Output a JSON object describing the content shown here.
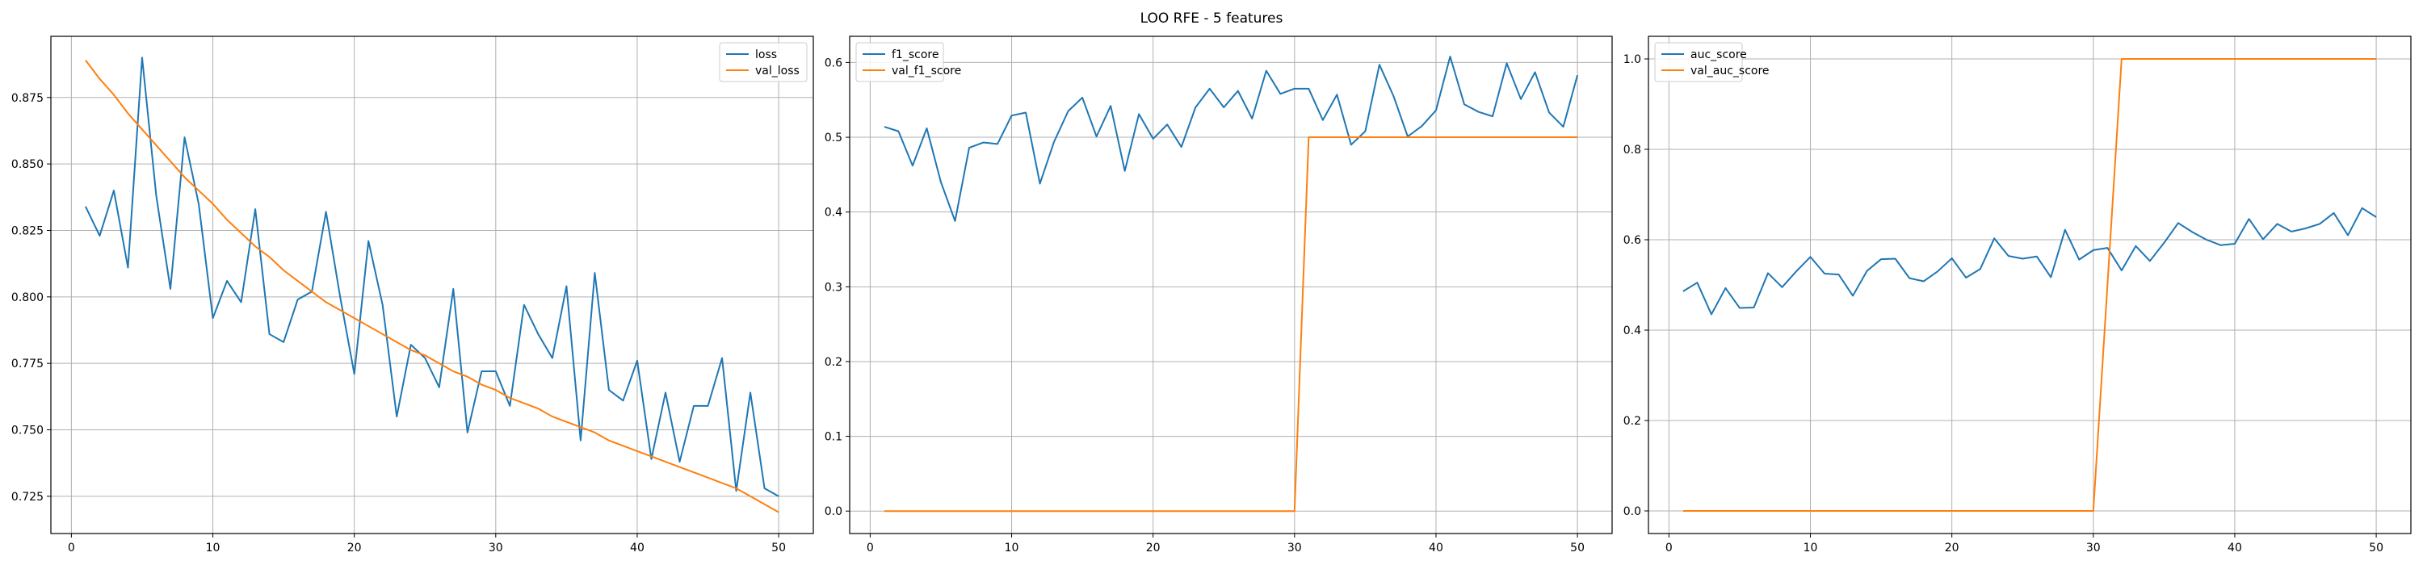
{
  "figure": {
    "title": "LOO RFE - 5 features"
  },
  "colors": {
    "series_1": "#1f77b4",
    "series_2": "#ff7f0e",
    "grid": "#b0b0b0",
    "axes": "#000000"
  },
  "chart_data": [
    {
      "type": "line",
      "title": "",
      "xlabel": "",
      "ylabel": "",
      "xlim": [
        -1.45,
        52.45
      ],
      "ylim": [
        0.711,
        0.898
      ],
      "xticks": [
        0,
        10,
        20,
        30,
        40,
        50
      ],
      "xtick_labels": [
        "0",
        "10",
        "20",
        "30",
        "40",
        "50"
      ],
      "yticks": [
        0.725,
        0.75,
        0.775,
        0.8,
        0.825,
        0.85,
        0.875
      ],
      "ytick_labels": [
        "0.725",
        "0.750",
        "0.775",
        "0.800",
        "0.825",
        "0.850",
        "0.875"
      ],
      "grid": true,
      "legend": "top-right",
      "x": [
        1,
        2,
        3,
        4,
        5,
        6,
        7,
        8,
        9,
        10,
        11,
        12,
        13,
        14,
        15,
        16,
        17,
        18,
        19,
        20,
        21,
        22,
        23,
        24,
        25,
        26,
        27,
        28,
        29,
        30,
        31,
        32,
        33,
        34,
        35,
        36,
        37,
        38,
        39,
        40,
        41,
        42,
        43,
        44,
        45,
        46,
        47,
        48,
        49,
        50
      ],
      "series": [
        {
          "name": "loss",
          "color": "#1f77b4",
          "values": [
            0.834,
            0.823,
            0.84,
            0.811,
            0.89,
            0.838,
            0.803,
            0.86,
            0.835,
            0.792,
            0.806,
            0.798,
            0.833,
            0.786,
            0.783,
            0.799,
            0.802,
            0.832,
            0.8,
            0.771,
            0.821,
            0.797,
            0.755,
            0.782,
            0.777,
            0.766,
            0.803,
            0.749,
            0.772,
            0.772,
            0.759,
            0.797,
            0.786,
            0.777,
            0.804,
            0.746,
            0.809,
            0.765,
            0.761,
            0.776,
            0.739,
            0.764,
            0.738,
            0.759,
            0.759,
            0.777,
            0.727,
            0.764,
            0.728,
            0.725
          ]
        },
        {
          "name": "val_loss",
          "color": "#ff7f0e",
          "values": [
            0.889,
            0.882,
            0.876,
            0.869,
            0.863,
            0.857,
            0.851,
            0.845,
            0.84,
            0.835,
            0.829,
            0.824,
            0.819,
            0.815,
            0.81,
            0.806,
            0.802,
            0.798,
            0.795,
            0.792,
            0.789,
            0.786,
            0.783,
            0.78,
            0.778,
            0.775,
            0.772,
            0.77,
            0.767,
            0.765,
            0.762,
            0.76,
            0.758,
            0.755,
            0.753,
            0.751,
            0.749,
            0.746,
            0.744,
            0.742,
            0.74,
            0.738,
            0.736,
            0.734,
            0.732,
            0.73,
            0.728,
            0.725,
            0.722,
            0.719
          ]
        }
      ]
    },
    {
      "type": "line",
      "title": "",
      "xlabel": "",
      "ylabel": "",
      "xlim": [
        -1.45,
        52.45
      ],
      "ylim": [
        -0.03,
        0.635
      ],
      "xticks": [
        0,
        10,
        20,
        30,
        40,
        50
      ],
      "xtick_labels": [
        "0",
        "10",
        "20",
        "30",
        "40",
        "50"
      ],
      "yticks": [
        0,
        0.1,
        0.2,
        0.3,
        0.4,
        0.5,
        0.6
      ],
      "ytick_labels": [
        "0.0",
        "0.1",
        "0.2",
        "0.3",
        "0.4",
        "0.5",
        "0.6"
      ],
      "grid": true,
      "legend": "top-left",
      "x": [
        1,
        2,
        3,
        4,
        5,
        6,
        7,
        8,
        9,
        10,
        11,
        12,
        13,
        14,
        15,
        16,
        17,
        18,
        19,
        20,
        21,
        22,
        23,
        24,
        25,
        26,
        27,
        28,
        29,
        30,
        31,
        32,
        33,
        34,
        35,
        36,
        37,
        38,
        39,
        40,
        41,
        42,
        43,
        44,
        45,
        46,
        47,
        48,
        49,
        50
      ],
      "series": [
        {
          "name": "f1_score",
          "color": "#1f77b4",
          "values": [
            0.514,
            0.508,
            0.462,
            0.512,
            0.44,
            0.388,
            0.486,
            0.493,
            0.491,
            0.529,
            0.533,
            0.438,
            0.494,
            0.535,
            0.553,
            0.501,
            0.542,
            0.455,
            0.531,
            0.498,
            0.517,
            0.487,
            0.54,
            0.565,
            0.54,
            0.562,
            0.525,
            0.589,
            0.558,
            0.565,
            0.565,
            0.523,
            0.557,
            0.49,
            0.508,
            0.597,
            0.555,
            0.501,
            0.515,
            0.536,
            0.608,
            0.544,
            0.534,
            0.528,
            0.599,
            0.551,
            0.587,
            0.533,
            0.514,
            0.583
          ]
        },
        {
          "name": "val_f1_score",
          "color": "#ff7f0e",
          "values": [
            0,
            0,
            0,
            0,
            0,
            0,
            0,
            0,
            0,
            0,
            0,
            0,
            0,
            0,
            0,
            0,
            0,
            0,
            0,
            0,
            0,
            0,
            0,
            0,
            0,
            0,
            0,
            0,
            0,
            0,
            0.5,
            0.5,
            0.5,
            0.5,
            0.5,
            0.5,
            0.5,
            0.5,
            0.5,
            0.5,
            0.5,
            0.5,
            0.5,
            0.5,
            0.5,
            0.5,
            0.5,
            0.5,
            0.5,
            0.5
          ]
        }
      ]
    },
    {
      "type": "line",
      "title": "",
      "xlabel": "",
      "ylabel": "",
      "xlim": [
        -1.45,
        52.45
      ],
      "ylim": [
        -0.05,
        1.05
      ],
      "xticks": [
        0,
        10,
        20,
        30,
        40,
        50
      ],
      "xtick_labels": [
        "0",
        "10",
        "20",
        "30",
        "40",
        "50"
      ],
      "yticks": [
        0,
        0.2,
        0.4,
        0.6,
        0.8,
        1.0
      ],
      "ytick_labels": [
        "0.0",
        "0.2",
        "0.4",
        "0.6",
        "0.8",
        "1.0"
      ],
      "grid": true,
      "legend": "top-left",
      "x": [
        1,
        2,
        3,
        4,
        5,
        6,
        7,
        8,
        9,
        10,
        11,
        12,
        13,
        14,
        15,
        16,
        17,
        18,
        19,
        20,
        21,
        22,
        23,
        24,
        25,
        26,
        27,
        28,
        29,
        30,
        31,
        32,
        33,
        34,
        35,
        36,
        37,
        38,
        39,
        40,
        41,
        42,
        43,
        44,
        45,
        46,
        47,
        48,
        49,
        50
      ],
      "series": [
        {
          "name": "auc_score",
          "color": "#1f77b4",
          "values": [
            0.486,
            0.505,
            0.435,
            0.493,
            0.449,
            0.45,
            0.526,
            0.495,
            0.53,
            0.562,
            0.525,
            0.523,
            0.476,
            0.531,
            0.557,
            0.558,
            0.515,
            0.508,
            0.53,
            0.559,
            0.516,
            0.535,
            0.603,
            0.564,
            0.558,
            0.563,
            0.517,
            0.622,
            0.556,
            0.577,
            0.582,
            0.532,
            0.586,
            0.553,
            0.593,
            0.637,
            0.617,
            0.6,
            0.588,
            0.591,
            0.646,
            0.601,
            0.635,
            0.618,
            0.625,
            0.635,
            0.659,
            0.61,
            0.67,
            0.65
          ]
        },
        {
          "name": "val_auc_score",
          "color": "#ff7f0e",
          "values": [
            0,
            0,
            0,
            0,
            0,
            0,
            0,
            0,
            0,
            0,
            0,
            0,
            0,
            0,
            0,
            0,
            0,
            0,
            0,
            0,
            0,
            0,
            0,
            0,
            0,
            0,
            0,
            0,
            0,
            0,
            0.5,
            1,
            1,
            1,
            1,
            1,
            1,
            1,
            1,
            1,
            1,
            1,
            1,
            1,
            1,
            1,
            1,
            1,
            1,
            1
          ]
        }
      ]
    }
  ]
}
